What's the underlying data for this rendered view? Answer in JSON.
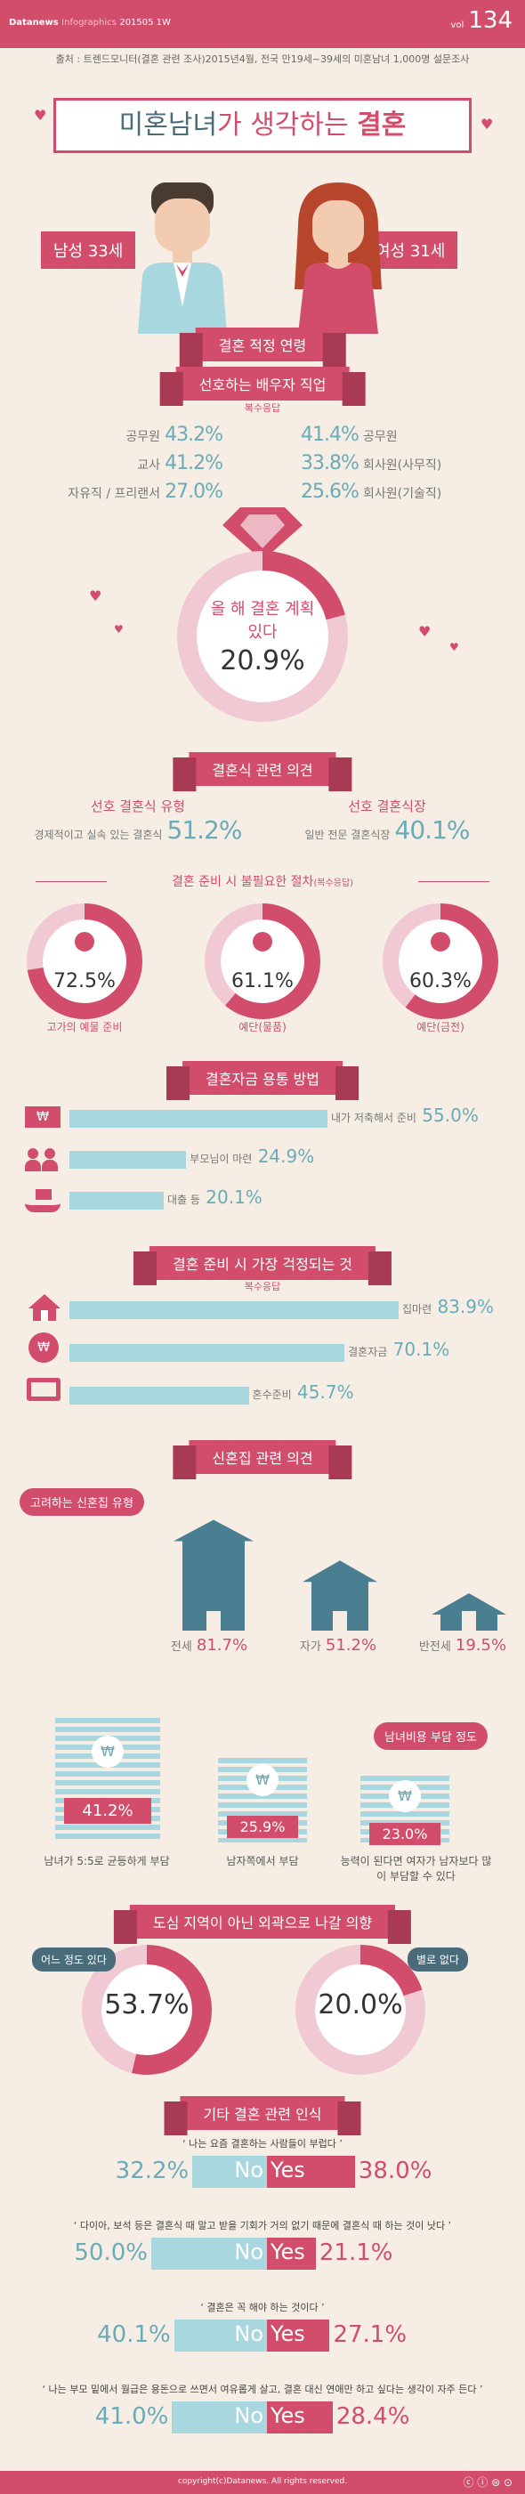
{
  "header": {
    "brand": "Datanews",
    "sub": "Infographics",
    "issue": "201505 1W",
    "vol": "vol",
    "num": "134"
  },
  "source": "출처 : 트렌드모니터(결혼 관련 조사)2015년4월, 전국 만19세~39세의 미혼남녀 1,000명 설문조사",
  "title": {
    "part1": "미혼남녀",
    "part2": "가 생각하는 ",
    "part3": "결혼"
  },
  "age": {
    "male": "남성 33세",
    "female": "여성 31세",
    "label": "결혼 적정 연령"
  },
  "job": {
    "title": "선호하는 배우자 직업",
    "note": "복수응답",
    "female_pref": [
      {
        "label": "공무원",
        "value": "43.2%"
      },
      {
        "label": "교사",
        "value": "41.2%"
      },
      {
        "label": "자유직 / 프리랜서",
        "value": "27.0%"
      }
    ],
    "male_pref": [
      {
        "label": "공무원",
        "value": "41.4%"
      },
      {
        "label": "회사원(사무직)",
        "value": "33.8%"
      },
      {
        "label": "회사원(기술직)",
        "value": "25.6%"
      }
    ]
  },
  "plan": {
    "label": "올 해 결혼 계획 있다",
    "value": "20.9%",
    "fraction": 0.209
  },
  "wedding": {
    "title": "결혼식 관련 의견",
    "type_title": "선호 결혼식 유형",
    "type_desc": "경제적이고 실속 있는 결혼식",
    "type_value": "51.2%",
    "venue_title": "선호 결혼식장",
    "venue_desc": "일반 전문 결혼식장",
    "venue_value": "40.1%",
    "unnecessary_title": "결혼 준비 시 불필요한 절차",
    "unnecessary_note": "(복수응답)",
    "items": [
      {
        "label": "고가의 예물 준비",
        "value": "72.5%",
        "fraction": 0.725,
        "icon": "ring-icon"
      },
      {
        "label": "예단(물품)",
        "value": "61.1%",
        "fraction": 0.611,
        "icon": "gift-icon"
      },
      {
        "label": "예단(금전)",
        "value": "60.3%",
        "fraction": 0.603,
        "icon": "money-bag-icon"
      }
    ]
  },
  "funds": {
    "title": "결혼자금 용통 방법",
    "items": [
      {
        "label": "내가 저축해서 준비",
        "value": "55.0%",
        "fraction": 0.55
      },
      {
        "label": "부모님이 마련",
        "value": "24.9%",
        "fraction": 0.249
      },
      {
        "label": "대출 등",
        "value": "20.1%",
        "fraction": 0.201
      }
    ]
  },
  "worry": {
    "title": "결혼 준비 시 가장 걱정되는 것",
    "note": "복수응답",
    "items": [
      {
        "label": "집마련",
        "value": "83.9%",
        "fraction": 0.839
      },
      {
        "label": "결혼자금",
        "value": "70.1%",
        "fraction": 0.701
      },
      {
        "label": "혼수준비",
        "value": "45.7%",
        "fraction": 0.457
      }
    ]
  },
  "house": {
    "title": "신혼집 관련 의견",
    "sub": "고려하는 신혼집 유형",
    "items": [
      {
        "label": "전세",
        "value": "81.7%",
        "fraction": 0.817
      },
      {
        "label": "자가",
        "value": "51.2%",
        "fraction": 0.512
      },
      {
        "label": "반전세",
        "value": "19.5%",
        "fraction": 0.195
      }
    ]
  },
  "cost": {
    "title": "남녀비용 부담 정도",
    "items": [
      {
        "label": "남녀가 5:5로 균등하게 부담",
        "value": "41.2%"
      },
      {
        "label": "남자쪽에서 부담",
        "value": "25.9%"
      },
      {
        "label": "능력이 된다면 여자가 남자보다 많이 부담할 수 있다",
        "value": "23.0%"
      }
    ]
  },
  "region": {
    "title": "도심 지역이 아닌 외곽으로 나갈 의향",
    "yes_label": "어느 정도 있다",
    "yes_value": "53.7%",
    "yes_fraction": 0.537,
    "no_label": "별로 없다",
    "no_value": "20.0%",
    "no_fraction": 0.2
  },
  "other": {
    "title": "기타 결혼 관련 인식",
    "yes_word": "Yes",
    "no_word": "No",
    "items": [
      {
        "q": "‘ 나는 요즘 결혼하는 사람들이 부럽다 ’",
        "no": "32.2%",
        "yes": "38.0%",
        "no_f": 0.322,
        "yes_f": 0.38
      },
      {
        "q": "‘ 다이아, 보석 등은 결혼식 때 말고 받을 기회가 거의 없기 때문에 결혼식 때 하는 것이 낫다 ’",
        "no": "50.0%",
        "yes": "21.1%",
        "no_f": 0.5,
        "yes_f": 0.211
      },
      {
        "q": "‘ 결혼은 꼭 해야 하는 것이다 ’",
        "no": "40.1%",
        "yes": "27.1%",
        "no_f": 0.401,
        "yes_f": 0.271
      },
      {
        "q": "‘ 나는 부모 밑에서 월급은 용돈으로 쓰면서 여유롭게 살고, 결혼 대신 연애만 하고 싶다는 생각이 자주 든다 ’",
        "no": "41.0%",
        "yes": "28.4%",
        "no_f": 0.41,
        "yes_f": 0.284
      }
    ]
  },
  "footer": {
    "copyright": "copyright(c)Datanews. All rights reserved."
  },
  "colors": {
    "pink": "#d14d6b",
    "teal": "#6aabb8",
    "light_teal": "#a8d7e0",
    "bg": "#f6eee4",
    "dark": "#4a6b7a"
  }
}
